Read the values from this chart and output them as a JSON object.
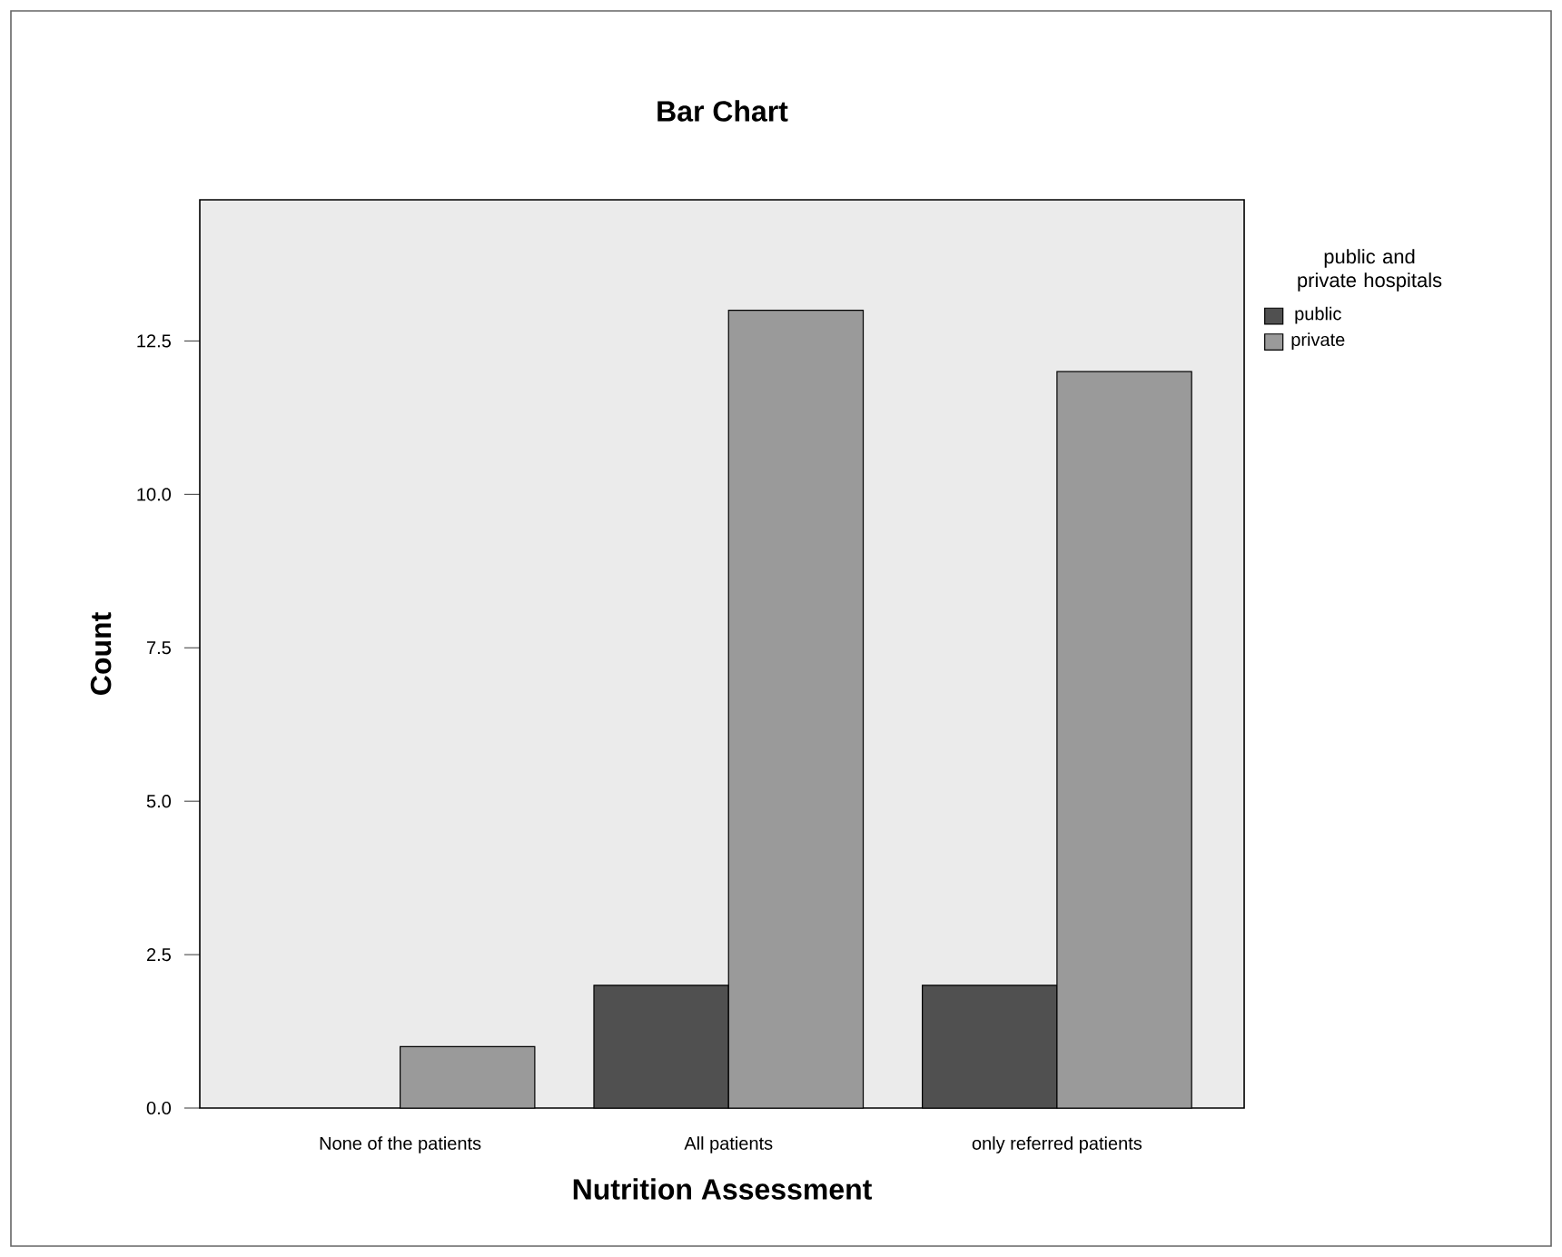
{
  "chart_data": {
    "type": "bar",
    "title": "Bar Chart",
    "xlabel": "Nutrition Assessment",
    "ylabel": "Count",
    "legend_title": "public and private hospitals",
    "categories": [
      "None of the patients",
      "All patients",
      "only referred patients"
    ],
    "series": [
      {
        "name": "public",
        "color": "#505050",
        "values": [
          null,
          2,
          2
        ]
      },
      {
        "name": "private",
        "color": "#9a9a9a",
        "values": [
          1,
          13,
          12
        ]
      }
    ],
    "ylim": [
      0,
      14.8
    ],
    "yticks": [
      {
        "value": 0,
        "label": "0.0"
      },
      2.5,
      {
        "value": 5,
        "label": "5.0"
      },
      7.5,
      {
        "value": 10,
        "label": "10.0"
      },
      12.5
    ],
    "legend": "top right"
  }
}
